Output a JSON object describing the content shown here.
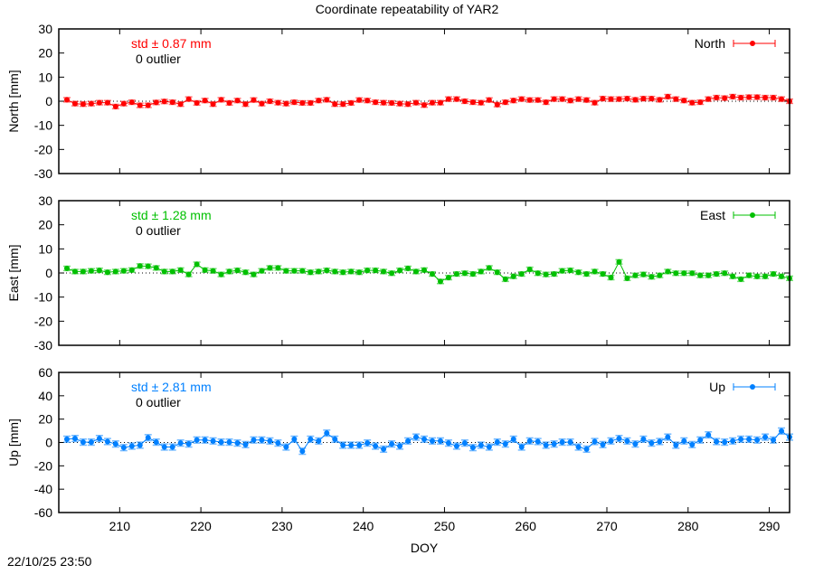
{
  "chart_data": {
    "type": "scatter",
    "title": "Coordinate repeatability of YAR2",
    "xlabel": "DOY",
    "xlim": [
      202.5,
      292.5
    ],
    "xticks": [
      210,
      220,
      230,
      240,
      250,
      260,
      270,
      280,
      290
    ],
    "timestamp": "22/10/25 23:50",
    "x": [
      203.5,
      204.5,
      205.5,
      206.5,
      207.5,
      208.5,
      209.5,
      210.5,
      211.5,
      212.5,
      213.5,
      214.5,
      215.5,
      216.5,
      217.5,
      218.5,
      219.5,
      220.5,
      221.5,
      222.5,
      223.5,
      224.5,
      225.5,
      226.5,
      227.5,
      228.5,
      229.5,
      230.5,
      231.5,
      232.5,
      233.5,
      234.5,
      235.5,
      236.5,
      237.5,
      238.5,
      239.5,
      240.5,
      241.5,
      242.5,
      243.5,
      244.5,
      245.5,
      246.5,
      247.5,
      248.5,
      249.5,
      250.5,
      251.5,
      252.5,
      253.5,
      254.5,
      255.5,
      256.5,
      257.5,
      258.5,
      259.5,
      260.5,
      261.5,
      262.5,
      263.5,
      264.5,
      265.5,
      266.5,
      267.5,
      268.5,
      269.5,
      270.5,
      271.5,
      272.5,
      273.5,
      274.5,
      275.5,
      276.5,
      277.5,
      278.5,
      279.5,
      280.5,
      281.5,
      282.5,
      283.5,
      284.5,
      285.5,
      286.5,
      287.5,
      288.5,
      289.5,
      290.5,
      291.5,
      292.5
    ],
    "panels": [
      {
        "name": "North",
        "ylabel": "North [mm]",
        "ylim": [
          -30,
          30
        ],
        "yticks": [
          -30,
          -20,
          -10,
          0,
          10,
          20,
          30
        ],
        "color": "#ff0000",
        "std_text": "std ± 0.87 mm",
        "outlier_text": "0 outlier",
        "yerr": 0.9,
        "y": [
          0.6,
          -1,
          -1.2,
          -1,
          -0.6,
          -0.6,
          -2.2,
          -1,
          -0.4,
          -1.7,
          -1.7,
          -0.5,
          -0.1,
          -0.4,
          -1.2,
          0.9,
          -0.7,
          0.3,
          -1.2,
          0.6,
          -0.7,
          0.3,
          -1.2,
          0.5,
          -1,
          0,
          -0.6,
          -1,
          -0.4,
          -0.7,
          -0.7,
          0.3,
          0.6,
          -1.2,
          -1.2,
          -0.7,
          0.5,
          0.3,
          -0.4,
          -0.6,
          -0.7,
          -1,
          -1.2,
          -0.6,
          -1.6,
          -0.6,
          -0.6,
          0.9,
          0.9,
          0,
          -0.4,
          -0.6,
          0.5,
          -1.4,
          -0.4,
          0.3,
          0.9,
          0.5,
          0.5,
          -0.4,
          0.9,
          0.9,
          0.3,
          0.9,
          0.5,
          -0.6,
          1.1,
          0.9,
          0.9,
          1.1,
          0.6,
          1.1,
          1.1,
          0.6,
          1.9,
          0.9,
          0.3,
          -0.6,
          -0.4,
          0.9,
          1.5,
          1.3,
          1.9,
          1.5,
          1.7,
          1.7,
          1.5,
          1.5,
          0.9,
          0
        ]
      },
      {
        "name": "East",
        "ylabel": "East [mm]",
        "ylim": [
          -30,
          30
        ],
        "yticks": [
          -30,
          -20,
          -10,
          0,
          10,
          20,
          30
        ],
        "color": "#00c000",
        "std_text": "std ± 1.28 mm",
        "outlier_text": "0 outlier",
        "yerr": 0.9,
        "y": [
          1.9,
          0.6,
          0.6,
          0.9,
          1.1,
          0.3,
          0.6,
          0.9,
          1.2,
          2.9,
          2.8,
          2.1,
          0.6,
          0.6,
          1.2,
          -0.6,
          3.6,
          1.2,
          0.9,
          -0.6,
          0.6,
          1.1,
          0.3,
          -0.6,
          0.9,
          2.1,
          2.1,
          0.9,
          0.9,
          0.9,
          0.3,
          0.6,
          1.1,
          0.6,
          0.3,
          0.6,
          0.3,
          1.1,
          1.1,
          0.6,
          -0.1,
          1.1,
          1.9,
          0.6,
          1.2,
          -0.4,
          -3.5,
          -1.9,
          -0.4,
          -0.1,
          -0.4,
          0.6,
          2.1,
          0.3,
          -2.6,
          -1.4,
          -0.4,
          1.5,
          -0.1,
          -0.6,
          -0.4,
          0.9,
          1.1,
          0.3,
          -0.4,
          0.6,
          -0.4,
          -1.9,
          4.6,
          -2.2,
          -1,
          -0.6,
          -1.6,
          -1,
          0.6,
          -0.1,
          -0.1,
          -0.1,
          -1,
          -1,
          -0.4,
          -0.1,
          -1.4,
          -2.6,
          -1,
          -1.4,
          -1.4,
          -0.4,
          -1.4,
          -2.2
        ]
      },
      {
        "name": "Up",
        "ylabel": "Up [mm]",
        "ylim": [
          -60,
          60
        ],
        "yticks": [
          -60,
          -40,
          -20,
          0,
          20,
          40,
          60
        ],
        "color": "#0080ff",
        "std_text": "std ± 2.81 mm",
        "outlier_text": "0 outlier",
        "yerr": 2.6,
        "y": [
          2.8,
          3.4,
          0.3,
          0.3,
          3.4,
          0.8,
          -1.3,
          -4.4,
          -3.1,
          -2.3,
          4.1,
          0.3,
          -3.9,
          -3.9,
          -0.5,
          -1.3,
          2.1,
          2.1,
          1.3,
          0.3,
          0.3,
          -0.5,
          -1.8,
          2.1,
          2.1,
          1.3,
          -0.5,
          -3.9,
          2.8,
          -7.5,
          2.8,
          1.3,
          8.0,
          2.8,
          -2.3,
          -2.3,
          -2.3,
          -0.5,
          -3.1,
          -5.7,
          -1.3,
          -3.1,
          1.3,
          4.6,
          2.8,
          1.3,
          1.3,
          -0.5,
          -3.1,
          -0.5,
          -4.4,
          -2.3,
          -3.9,
          0.3,
          -1.3,
          2.8,
          -3.9,
          1.3,
          0.8,
          -2.3,
          -1.3,
          0.3,
          0.3,
          -3.9,
          -5.7,
          0.8,
          -1.8,
          1.3,
          3.4,
          1.3,
          -1.3,
          2.8,
          -0.5,
          0.8,
          4.6,
          -2.3,
          1.3,
          -1.8,
          2.1,
          6.5,
          0.8,
          0.3,
          1.3,
          2.8,
          2.8,
          2.1,
          4.6,
          2.1,
          9.8,
          4.6
        ]
      }
    ]
  }
}
